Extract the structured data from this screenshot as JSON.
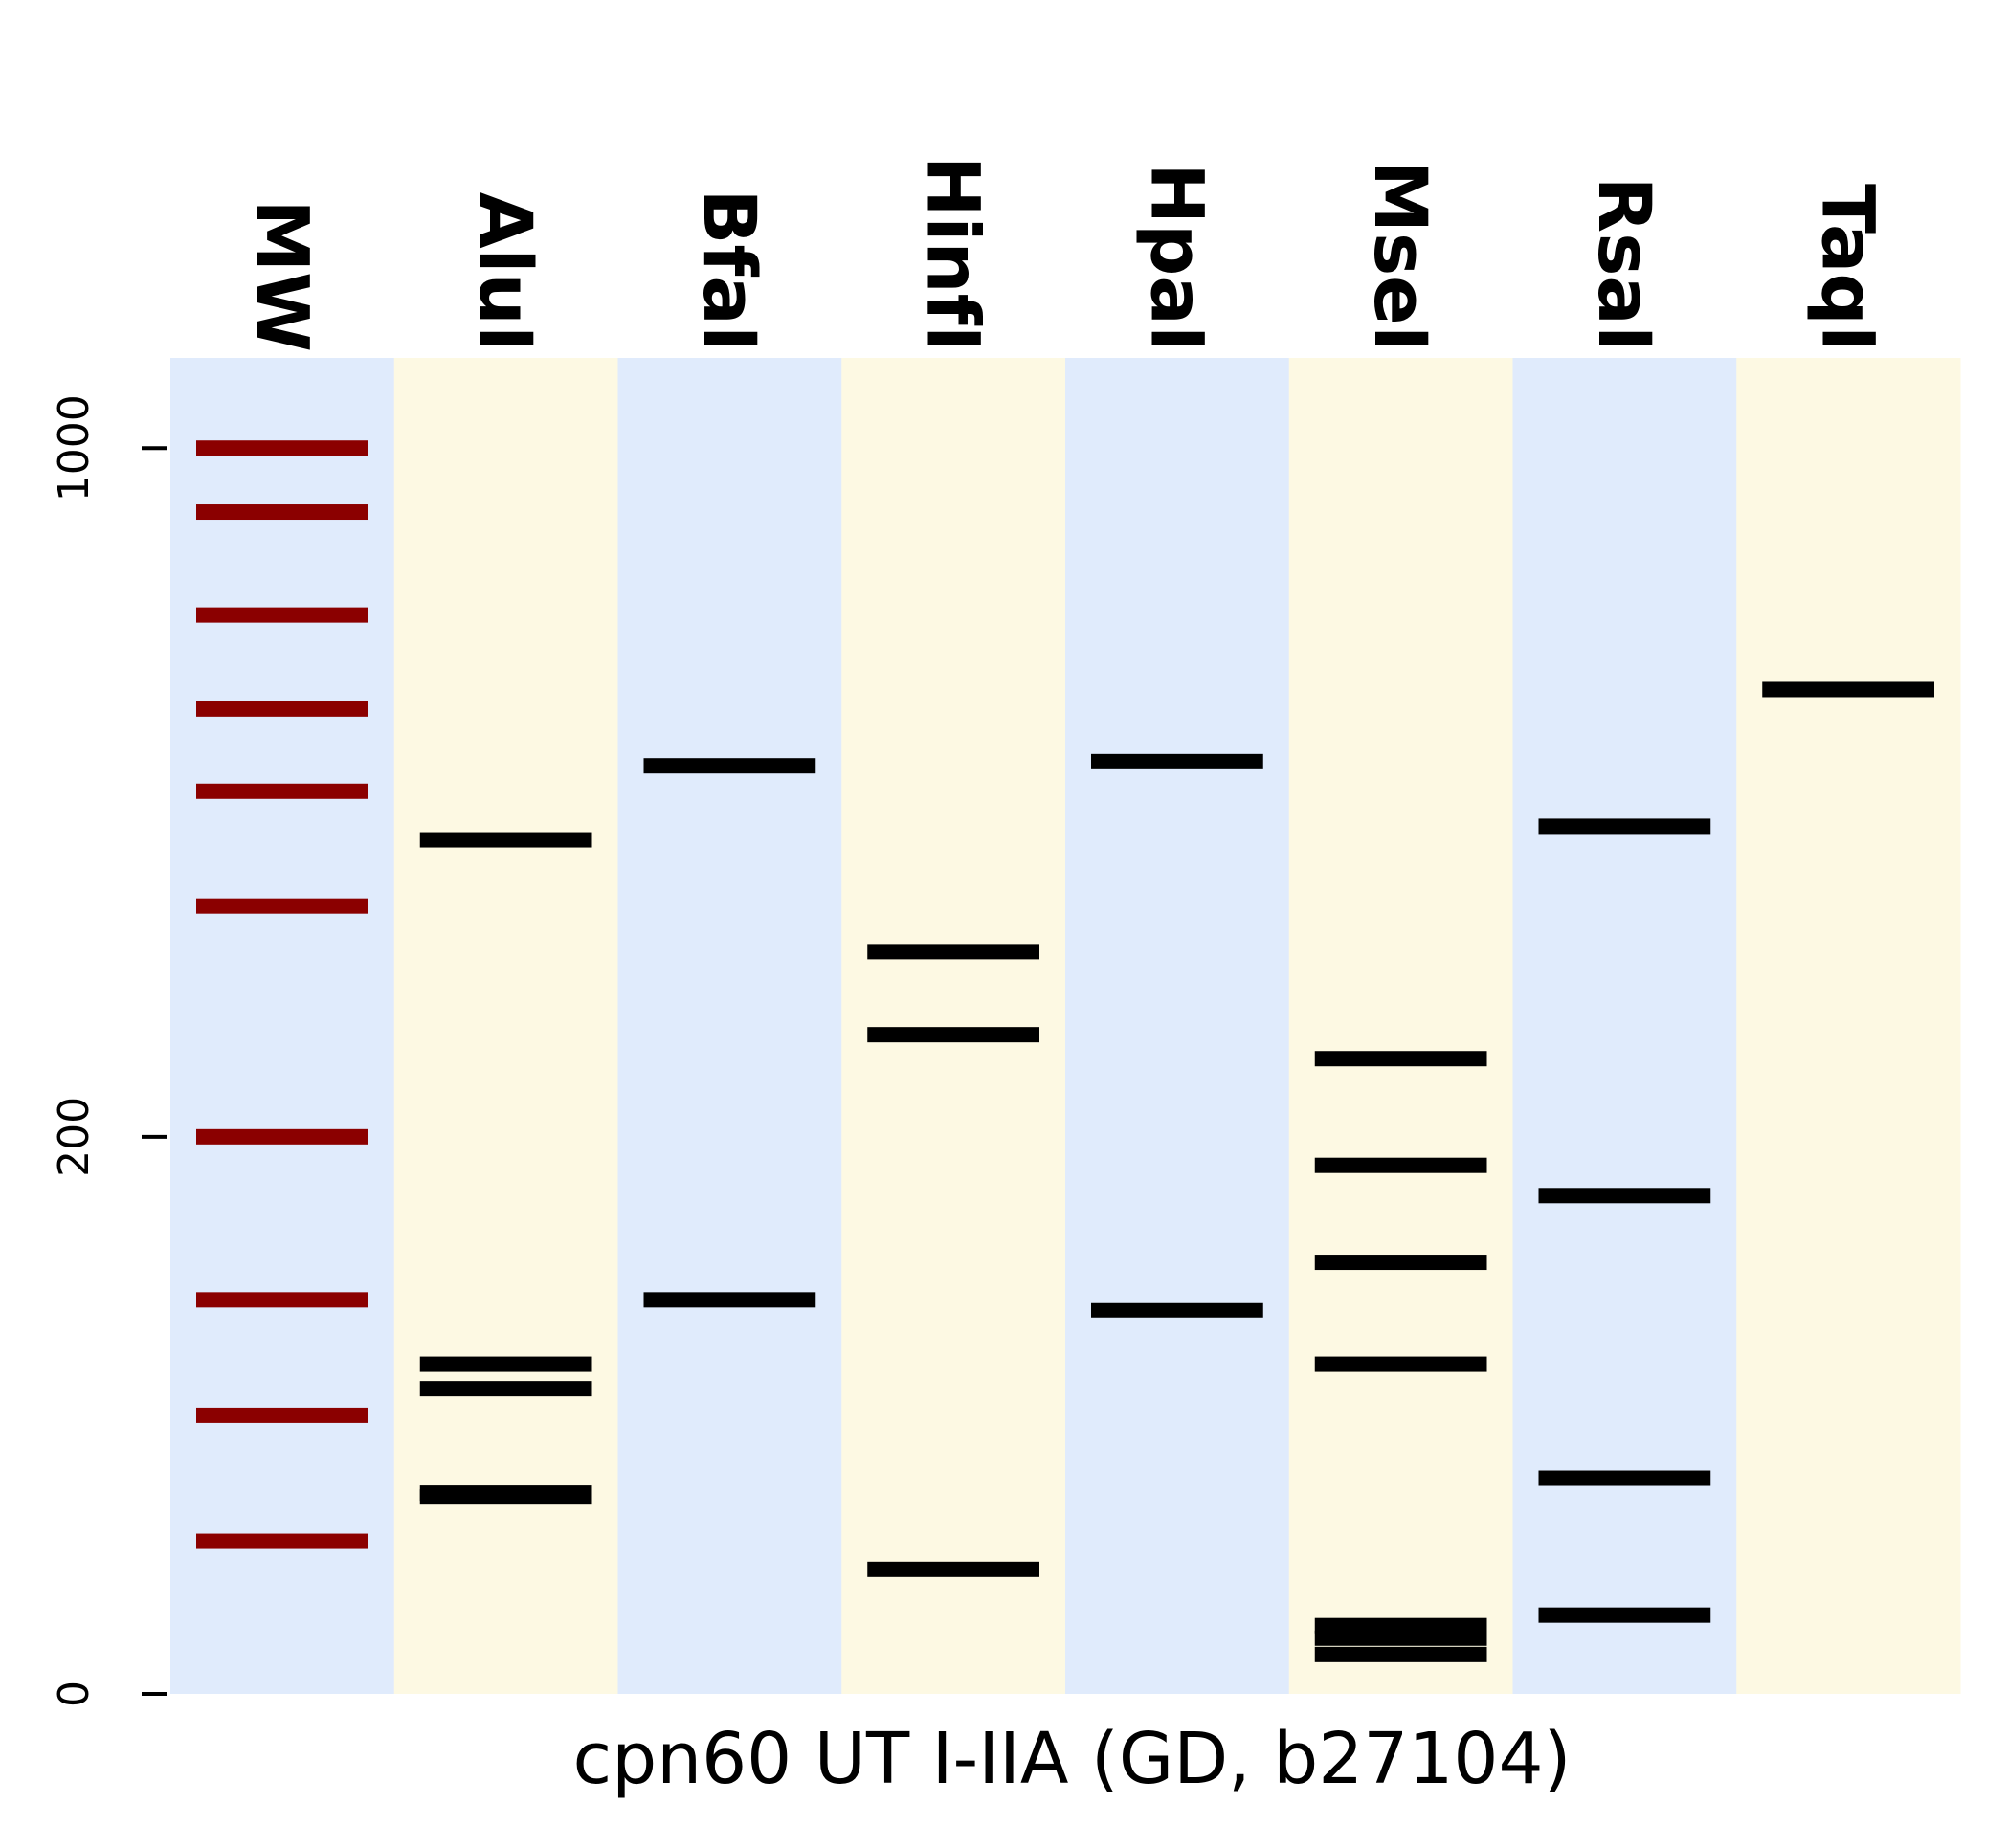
{
  "chart_data": {
    "type": "gel",
    "xlabel": "cpn60 UT I-IIA (GD, b27104)",
    "ylabel": "",
    "ylim": [
      0,
      1150
    ],
    "y_scale": "square-root",
    "y_ticks": [
      {
        "value": 0,
        "label": "0"
      },
      {
        "value": 200,
        "label": "200"
      },
      {
        "value": 1000,
        "label": "1000"
      }
    ],
    "lane_colors": [
      "#e0ebfc",
      "#fdf9e3"
    ],
    "ladder_color": "#8b0000",
    "band_color": "#000000",
    "lanes": [
      {
        "name": "MW",
        "ladder": true,
        "bands": [
          1000,
          900,
          750,
          625,
          525,
          400,
          200,
          100,
          50,
          15
        ]
      },
      {
        "name": "AluI",
        "bands": [
          470,
          70,
          60,
          26,
          25
        ]
      },
      {
        "name": "BfaI",
        "bands": [
          555,
          100
        ]
      },
      {
        "name": "HinfI",
        "bands": [
          355,
          280,
          10
        ]
      },
      {
        "name": "HpaI",
        "bands": [
          560,
          95
        ]
      },
      {
        "name": "MseI",
        "bands": [
          260,
          180,
          120,
          70,
          3,
          2,
          1
        ]
      },
      {
        "name": "RsaI",
        "bands": [
          485,
          160,
          30,
          4
        ]
      },
      {
        "name": "TaqI",
        "bands": [
          650
        ]
      }
    ]
  }
}
